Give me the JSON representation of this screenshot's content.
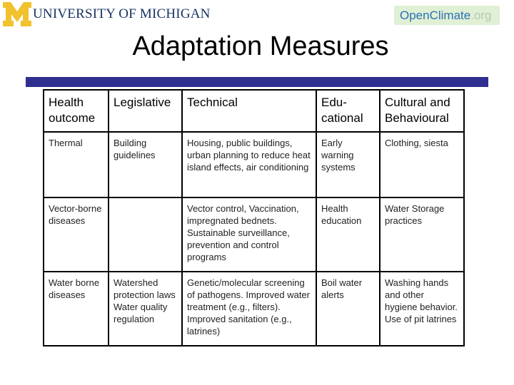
{
  "header": {
    "university": "UNIVERSITY OF MICHIGAN",
    "oc_open": "Open",
    "oc_climate": "Climate",
    "oc_tld": ".org",
    "colors": {
      "maize": "#f2c12e",
      "navy": "#16325f",
      "rule": "#2e2f8f",
      "oc_bg": "#dff0d5"
    }
  },
  "title": "Adaptation Measures",
  "table": {
    "headers": [
      "Health outcome",
      "Legislative",
      "Technical",
      "Edu- cational",
      "Cultural and Behavioural"
    ],
    "rows": [
      [
        "Thermal",
        "Building guidelines",
        "Housing, public buildings, urban planning to reduce heat island effects, air conditioning",
        "Early warning systems",
        "Clothing, siesta"
      ],
      [
        "Vector-borne diseases",
        "",
        "Vector control, Vaccination, impregnated bednets. Sustainable surveillance, prevention and control programs",
        "Health education",
        "Water Storage practices"
      ],
      [
        "Water borne diseases",
        "Watershed protection laws\nWater quality regulation",
        "Genetic/molecular screening of pathogens. Improved water treatment (e.g., filters). Improved sanitation (e.g., latrines)",
        "Boil water alerts",
        "Washing hands and other hygiene behavior. Use of pit latrines"
      ]
    ]
  }
}
